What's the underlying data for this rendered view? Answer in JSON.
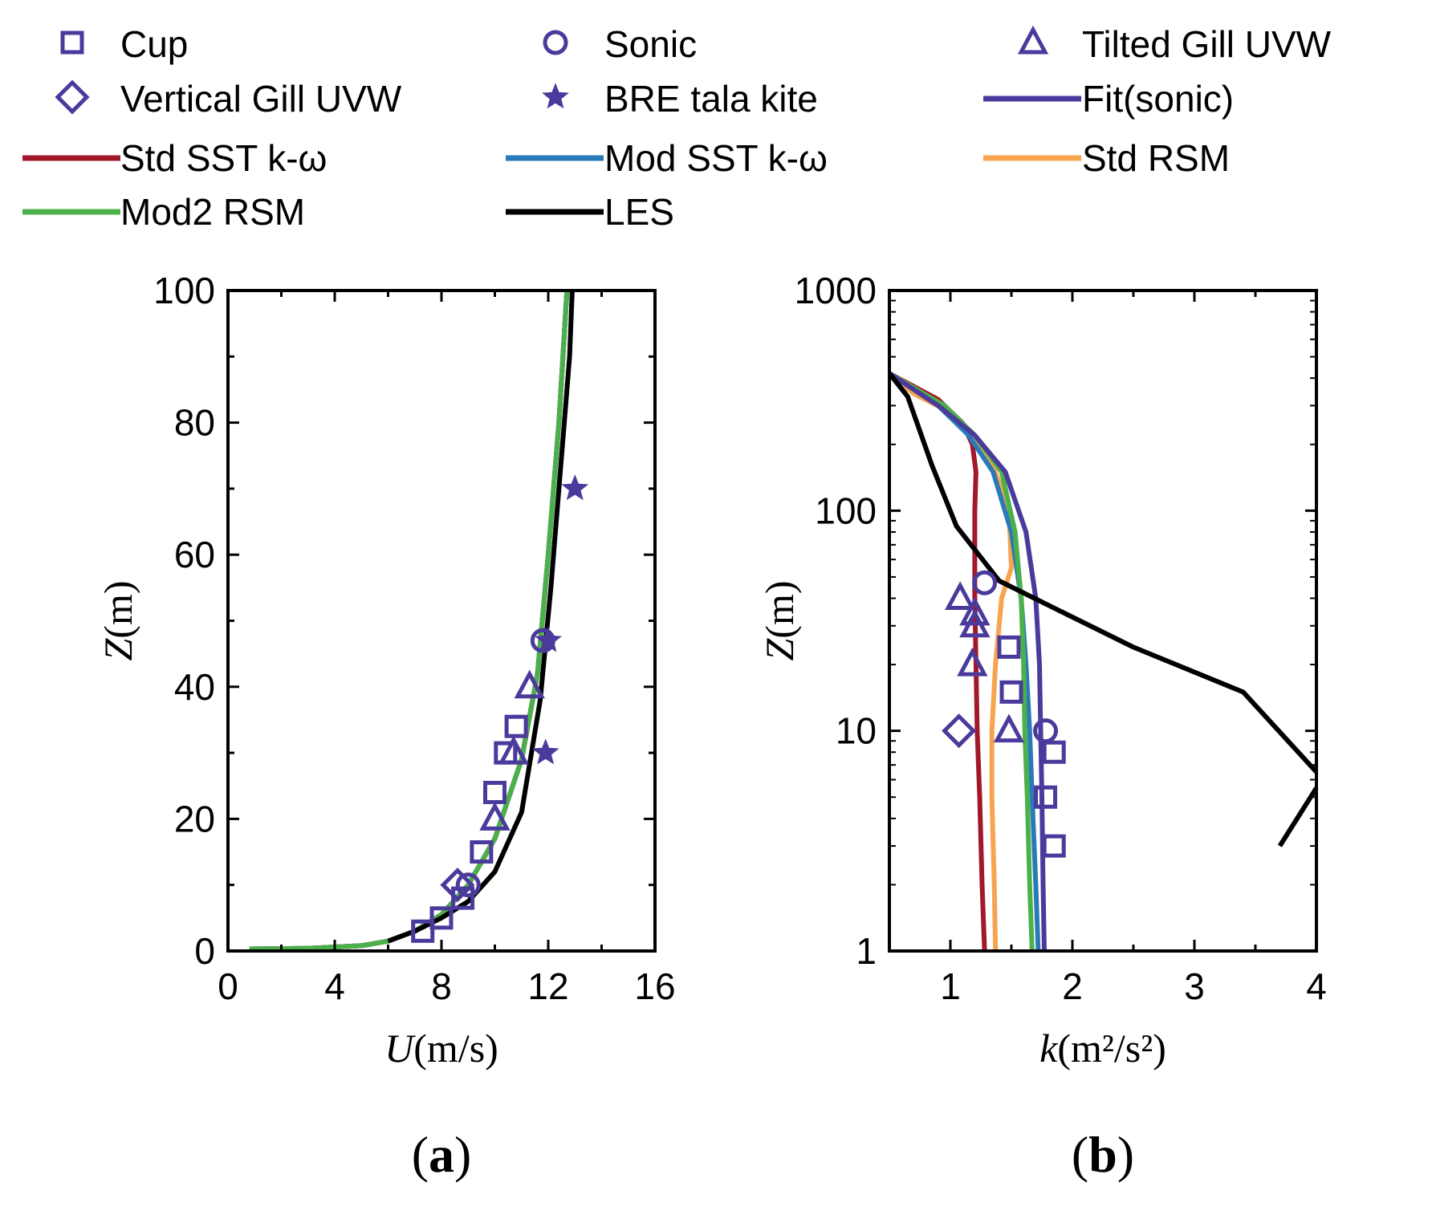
{
  "colors": {
    "marker": "#4a3a9c",
    "fit_sonic": "#4a3a9c",
    "std_sst": "#a3172b",
    "mod_sst": "#2a7ab8",
    "std_rsm": "#f7a451",
    "mod2_rsm": "#4cb04a",
    "les": "#000000"
  },
  "legend": [
    {
      "label": "Cup",
      "kind": "marker",
      "marker": "square-icon"
    },
    {
      "label": "Sonic",
      "kind": "marker",
      "marker": "circle-icon"
    },
    {
      "label": "Tilted Gill UVW",
      "kind": "marker",
      "marker": "triangle-icon"
    },
    {
      "label": "Vertical Gill UVW",
      "kind": "marker",
      "marker": "diamond-icon"
    },
    {
      "label": "BRE tala kite",
      "kind": "marker",
      "marker": "star-icon"
    },
    {
      "label": "Fit(sonic)",
      "kind": "line",
      "color_key": "fit_sonic"
    },
    {
      "label": "Std SST k-ω",
      "kind": "line",
      "color_key": "std_sst"
    },
    {
      "label": "Mod SST k-ω",
      "kind": "line",
      "color_key": "mod_sst"
    },
    {
      "label": "Std RSM",
      "kind": "line",
      "color_key": "std_rsm"
    },
    {
      "label": "Mod2 RSM",
      "kind": "line",
      "color_key": "mod2_rsm"
    },
    {
      "label": "LES",
      "kind": "line",
      "color_key": "les"
    }
  ],
  "chart_data": [
    {
      "type": "line",
      "panel_label": "(a)",
      "panel_letter": "a",
      "xlabel_var": "U",
      "xlabel_unit": "(m/s)",
      "ylabel_var": "Z",
      "ylabel_unit": "(m)",
      "xlim": [
        0,
        16
      ],
      "ylim": [
        0,
        100
      ],
      "yscale": "linear",
      "xticks": [
        0,
        4,
        8,
        12,
        16
      ],
      "yticks": [
        0,
        20,
        40,
        60,
        80,
        100
      ],
      "xtick_labels": [
        "0",
        "4",
        "8",
        "12",
        "16"
      ],
      "ytick_labels": [
        "0",
        "20",
        "40",
        "60",
        "80",
        "100"
      ],
      "series": [
        {
          "name": "Std SST k-ω",
          "color_key": "std_sst",
          "x": [
            0.8,
            3,
            5,
            6,
            7,
            8,
            9,
            10,
            11,
            11.6,
            12,
            12.4,
            12.7
          ],
          "y": [
            0.3,
            0.4,
            0.8,
            1.5,
            3,
            5.5,
            10,
            17,
            29,
            42,
            60,
            80,
            100
          ]
        },
        {
          "name": "Mod SST k-ω",
          "color_key": "mod_sst",
          "x": [
            0.8,
            3,
            5,
            6,
            7,
            8,
            9,
            10,
            11,
            11.6,
            12,
            12.4,
            12.7
          ],
          "y": [
            0.3,
            0.4,
            0.8,
            1.5,
            3,
            5.5,
            10,
            17,
            29,
            42,
            60,
            80,
            100
          ]
        },
        {
          "name": "Std RSM",
          "color_key": "std_rsm",
          "x": [
            0.8,
            3,
            5,
            6,
            7,
            8,
            9,
            10,
            11,
            11.6,
            12,
            12.4,
            12.7
          ],
          "y": [
            0.3,
            0.4,
            0.8,
            1.5,
            3,
            5.5,
            10,
            17,
            29,
            42,
            60,
            80,
            100
          ]
        },
        {
          "name": "Fit(sonic)",
          "color_key": "fit_sonic",
          "x": [
            0.8,
            3,
            5,
            6,
            7,
            8,
            9,
            10,
            11,
            11.6,
            12,
            12.4,
            12.7
          ],
          "y": [
            0.3,
            0.4,
            0.8,
            1.5,
            3,
            5.5,
            10,
            17,
            29,
            42,
            60,
            80,
            100
          ]
        },
        {
          "name": "Mod2 RSM",
          "color_key": "mod2_rsm",
          "x": [
            0.8,
            3,
            5,
            6,
            7,
            8,
            9,
            10,
            11,
            11.6,
            12,
            12.4,
            12.7
          ],
          "y": [
            0.3,
            0.4,
            0.8,
            1.5,
            3,
            5.5,
            10,
            17,
            29,
            42,
            60,
            80,
            100
          ]
        },
        {
          "name": "LES",
          "color_key": "les",
          "x": [
            6,
            7,
            8,
            9,
            10,
            11,
            11.7,
            12.1,
            12.4,
            12.6,
            12.8,
            12.9
          ],
          "y": [
            1.5,
            3,
            5,
            7.5,
            12,
            21,
            38,
            55,
            70,
            80,
            90,
            100
          ]
        }
      ],
      "markers": [
        {
          "name": "Cup",
          "marker": "square",
          "x": [
            7.3,
            8,
            8.8,
            9.5,
            10,
            10.4,
            10.8
          ],
          "y": [
            3,
            5,
            8,
            15,
            24,
            30,
            34
          ]
        },
        {
          "name": "Sonic",
          "marker": "circle",
          "x": [
            9,
            11.8
          ],
          "y": [
            10,
            47
          ]
        },
        {
          "name": "Tilted Gill UVW",
          "marker": "triangle",
          "x": [
            10,
            10.7,
            11.3
          ],
          "y": [
            20,
            30,
            40
          ]
        },
        {
          "name": "Vertical Gill UVW",
          "marker": "diamond",
          "x": [
            8.6
          ],
          "y": [
            10
          ]
        },
        {
          "name": "BRE tala kite",
          "marker": "star",
          "x": [
            12,
            11.9,
            13
          ],
          "y": [
            47,
            30,
            70
          ]
        }
      ]
    },
    {
      "type": "line",
      "panel_label": "(b)",
      "panel_letter": "b",
      "xlabel_var": "k",
      "xlabel_unit": "(m²/s²)",
      "ylabel_var": "Z",
      "ylabel_unit": "(m)",
      "xlim": [
        0.5,
        4
      ],
      "ylim": [
        1,
        1000
      ],
      "yscale": "log",
      "xticks": [
        1,
        2,
        3,
        4
      ],
      "yticks": [
        1,
        10,
        100,
        1000
      ],
      "xtick_labels": [
        "1",
        "2",
        "3",
        "4"
      ],
      "ytick_labels": [
        "1",
        "10",
        "100",
        "1000"
      ],
      "series": [
        {
          "name": "Std SST k-ω",
          "color_key": "std_sst",
          "x": [
            1.28,
            1.26,
            1.24,
            1.22,
            1.21,
            1.2,
            1.2,
            1.2,
            1.21,
            1.18,
            1.1,
            0.9,
            0.5
          ],
          "y": [
            1,
            2,
            5,
            10,
            20,
            40,
            70,
            100,
            150,
            200,
            250,
            320,
            420
          ]
        },
        {
          "name": "Std RSM",
          "color_key": "std_rsm",
          "x": [
            1.37,
            1.36,
            1.34,
            1.34,
            1.37,
            1.42,
            1.5,
            1.48,
            1.35,
            1.2,
            1.0,
            0.7,
            0.5
          ],
          "y": [
            1,
            2,
            5,
            10,
            20,
            40,
            55,
            100,
            160,
            220,
            280,
            340,
            420
          ]
        },
        {
          "name": "Mod SST k-ω",
          "color_key": "mod_sst",
          "x": [
            1.72,
            1.7,
            1.67,
            1.65,
            1.62,
            1.58,
            1.5,
            1.35,
            1.15,
            0.9,
            0.5
          ],
          "y": [
            1,
            2,
            5,
            10,
            20,
            40,
            80,
            150,
            220,
            300,
            420
          ]
        },
        {
          "name": "Mod2 RSM",
          "color_key": "mod2_rsm",
          "x": [
            1.67,
            1.65,
            1.63,
            1.61,
            1.6,
            1.58,
            1.53,
            1.42,
            1.2,
            0.95,
            0.5
          ],
          "y": [
            1,
            2,
            5,
            10,
            20,
            40,
            80,
            150,
            220,
            300,
            420
          ]
        },
        {
          "name": "Fit(sonic)",
          "color_key": "fit_sonic",
          "x": [
            1.77,
            1.76,
            1.75,
            1.74,
            1.73,
            1.7,
            1.62,
            1.45,
            1.2,
            0.9,
            0.5
          ],
          "y": [
            1,
            2,
            5,
            10,
            20,
            40,
            80,
            150,
            220,
            300,
            420
          ]
        },
        {
          "name": "LES",
          "color_key": "les",
          "x": [
            0.5,
            0.65,
            0.85,
            1.05,
            1.4,
            1.9,
            2.5,
            3.4,
            4.0
          ],
          "y": [
            420,
            330,
            160,
            85,
            48,
            35,
            24,
            15,
            6.5
          ]
        },
        {
          "name": "LES (lower branch)",
          "color_key": "les",
          "x": [
            3.7,
            4.0
          ],
          "y": [
            3,
            5.5
          ]
        }
      ],
      "markers": [
        {
          "name": "Cup",
          "marker": "square",
          "x": [
            1.48,
            1.5,
            1.78,
            1.85,
            1.85
          ],
          "y": [
            24,
            15,
            5,
            8,
            3
          ]
        },
        {
          "name": "Sonic",
          "marker": "circle",
          "x": [
            1.28,
            1.78
          ],
          "y": [
            47,
            10
          ]
        },
        {
          "name": "Tilted Gill UVW",
          "marker": "triangle",
          "x": [
            1.08,
            1.2,
            1.2,
            1.18,
            1.48
          ],
          "y": [
            40,
            30,
            34,
            20,
            10
          ]
        },
        {
          "name": "Vertical Gill UVW",
          "marker": "diamond",
          "x": [
            1.07
          ],
          "y": [
            10
          ]
        }
      ]
    }
  ]
}
